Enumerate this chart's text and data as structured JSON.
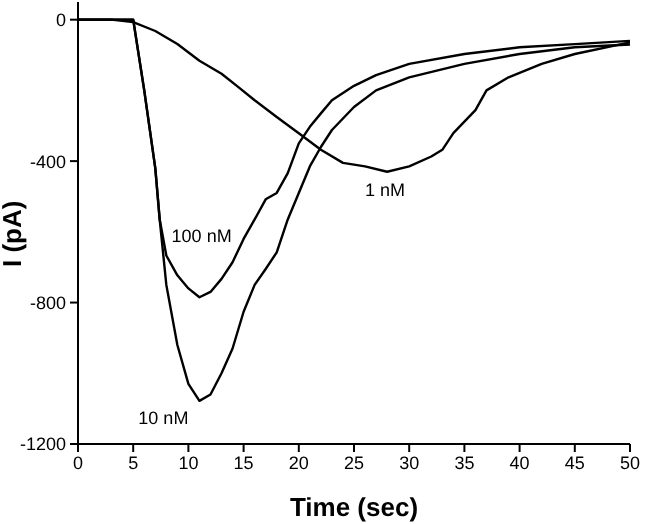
{
  "chart_data": {
    "type": "line",
    "xlabel": "Time (sec)",
    "ylabel": "I (pA)",
    "xlim": [
      0,
      50
    ],
    "xticks": [
      0,
      5,
      10,
      15,
      20,
      25,
      30,
      35,
      40,
      45,
      50
    ],
    "ylim": [
      -1200,
      50
    ],
    "yticks": [
      -1200,
      -800,
      -400,
      0
    ],
    "grid": false,
    "legend": false,
    "marker": "none",
    "line_style": "solid",
    "series": [
      {
        "name": "100 nM",
        "color": "#000000",
        "x": [
          0,
          5,
          6,
          7,
          7.4,
          8,
          9,
          10,
          11,
          12,
          13,
          14,
          15,
          16,
          17,
          18,
          19,
          20,
          21,
          22,
          23,
          25,
          27,
          30,
          35,
          40,
          45,
          50
        ],
        "values": [
          0,
          0,
          -200,
          -420,
          -565,
          -667,
          -723,
          -760,
          -785,
          -770,
          -733,
          -686,
          -620,
          -565,
          -508,
          -490,
          -434,
          -350,
          -303,
          -265,
          -228,
          -187,
          -157,
          -125,
          -97,
          -78,
          -69,
          -60
        ]
      },
      {
        "name": "10 nM",
        "color": "#000000",
        "x": [
          0,
          5,
          6,
          7,
          7.4,
          8,
          9,
          10,
          11,
          12,
          13,
          14,
          15,
          16,
          17,
          18,
          19,
          20,
          21,
          22,
          23,
          25,
          27,
          30,
          35,
          40,
          45,
          50
        ],
        "values": [
          0,
          0,
          -200,
          -420,
          -565,
          -750,
          -920,
          -1030,
          -1078,
          -1060,
          -1000,
          -930,
          -826,
          -750,
          -705,
          -658,
          -565,
          -490,
          -415,
          -360,
          -312,
          -247,
          -200,
          -163,
          -125,
          -97,
          -78,
          -70
        ]
      },
      {
        "name": "1 nM",
        "color": "#000000",
        "x": [
          0,
          3,
          5,
          7,
          9,
          11,
          13,
          14.5,
          16,
          18,
          20,
          22,
          24,
          26,
          28,
          30,
          32,
          33,
          34,
          36,
          37,
          39,
          42,
          45,
          50
        ],
        "values": [
          0,
          0,
          -7,
          -32,
          -69,
          -116,
          -153,
          -190,
          -228,
          -275,
          -321,
          -368,
          -405,
          -415,
          -430,
          -415,
          -387,
          -368,
          -321,
          -256,
          -200,
          -163,
          -125,
          -97,
          -64
        ]
      }
    ]
  }
}
